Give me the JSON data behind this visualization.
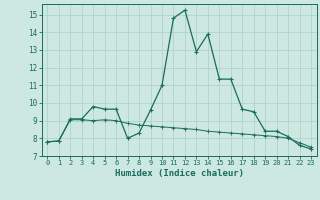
{
  "xlabel": "Humidex (Indice chaleur)",
  "background_color": "#cce8e0",
  "grid_color": "#aacfc8",
  "line_color": "#1a6b60",
  "xlim": [
    -0.5,
    23.5
  ],
  "ylim": [
    7,
    15.6
  ],
  "yticks": [
    7,
    8,
    9,
    10,
    11,
    12,
    13,
    14,
    15
  ],
  "xticks": [
    0,
    1,
    2,
    3,
    4,
    5,
    6,
    7,
    8,
    9,
    10,
    11,
    12,
    13,
    14,
    15,
    16,
    17,
    18,
    19,
    20,
    21,
    22,
    23
  ],
  "line1_x": [
    0,
    1,
    2,
    3,
    4,
    5,
    6,
    7,
    8,
    9,
    10,
    11,
    12,
    13,
    14,
    15,
    16,
    17,
    18,
    19,
    20,
    21,
    22,
    23
  ],
  "line1_y": [
    7.8,
    7.85,
    9.1,
    9.1,
    9.8,
    9.65,
    9.65,
    8.0,
    8.3,
    9.6,
    11.0,
    14.8,
    15.25,
    12.9,
    13.9,
    11.35,
    11.35,
    9.65,
    9.5,
    8.4,
    8.4,
    8.1,
    7.6,
    7.4
  ],
  "line2_x": [
    0,
    1,
    2,
    3,
    4,
    5,
    6,
    7,
    8,
    9,
    10,
    11,
    12,
    13,
    14,
    15,
    16,
    17,
    18,
    19,
    20,
    21,
    22,
    23
  ],
  "line2_y": [
    7.8,
    7.85,
    9.05,
    9.05,
    9.0,
    9.05,
    9.0,
    8.85,
    8.75,
    8.7,
    8.65,
    8.6,
    8.55,
    8.5,
    8.4,
    8.35,
    8.3,
    8.25,
    8.2,
    8.15,
    8.1,
    8.0,
    7.75,
    7.5
  ]
}
